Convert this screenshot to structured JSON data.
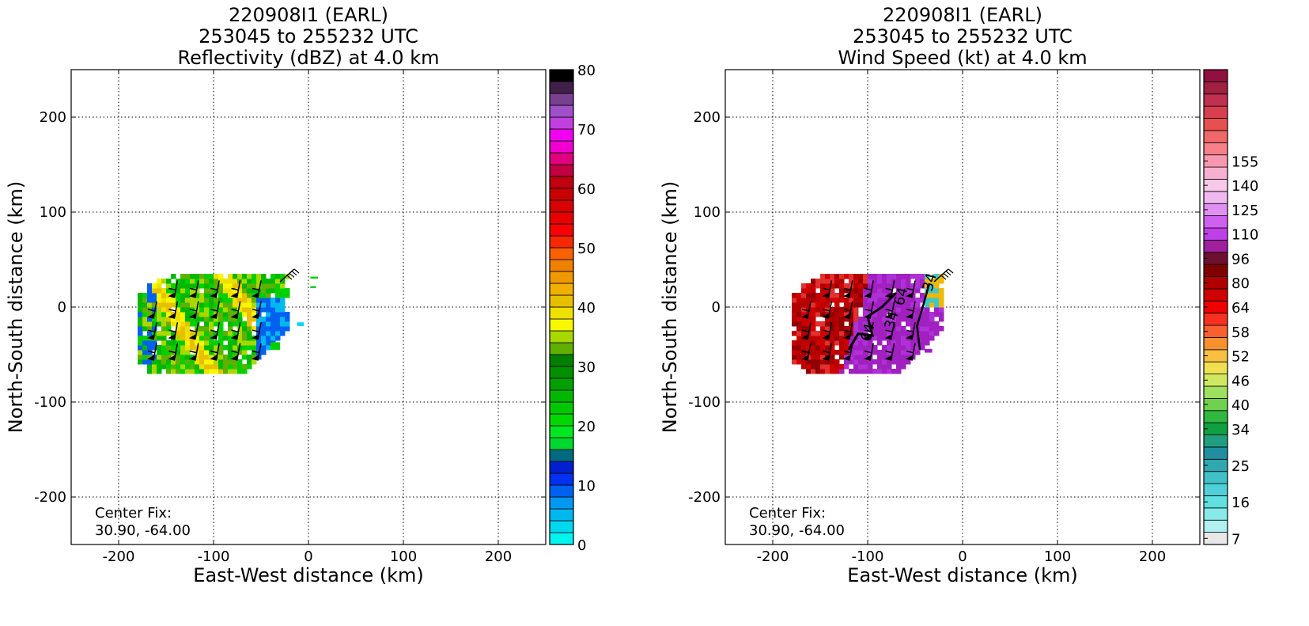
{
  "chart_data": [
    {
      "type": "heatmap",
      "title_lines": [
        "220908I1 (EARL)",
        "253045 to 255232 UTC",
        "Reflectivity (dBZ) at 4.0 km"
      ],
      "xlabel": "East-West distance (km)",
      "ylabel": "North-South distance (km)",
      "xlim": [
        -250,
        250
      ],
      "ylim": [
        -250,
        250
      ],
      "xticks": [
        -200,
        -100,
        0,
        100,
        200
      ],
      "yticks": [
        -200,
        -100,
        0,
        100,
        200
      ],
      "grid": true,
      "annotation_lines": [
        "Center Fix:",
        "30.90, -64.00"
      ],
      "colorbar": {
        "vmin": 0,
        "vmax": 80,
        "tick_values": [
          0,
          10,
          20,
          30,
          40,
          50,
          60,
          70,
          80
        ],
        "tick_labels": [
          "0",
          "10",
          "20",
          "30",
          "40",
          "50",
          "60",
          "70",
          "80"
        ],
        "colors": [
          "#00f5f0",
          "#00d8f0",
          "#00b8f0",
          "#0098f0",
          "#0060f0",
          "#0030f0",
          "#0020d0",
          "#006a80",
          "#00d830",
          "#00e820",
          "#00d800",
          "#00c800",
          "#00b800",
          "#00a000",
          "#009000",
          "#008000",
          "#60b000",
          "#a8d800",
          "#f8f800",
          "#f0e000",
          "#e8c000",
          "#f0b000",
          "#f09800",
          "#f08000",
          "#f86000",
          "#f82800",
          "#f80000",
          "#e80000",
          "#d80000",
          "#c80000",
          "#c00010",
          "#c00040",
          "#e00080",
          "#f000d0",
          "#f000f0",
          "#c040e0",
          "#a050c8",
          "#784090",
          "#402048",
          "#000000"
        ]
      },
      "field_colors": [
        "#00d000",
        "#00b800",
        "#60b000",
        "#a8d800",
        "#f0e000",
        "#e8c000",
        "#f8f800",
        "#00d830",
        "#0060f0",
        "#00b8f0",
        "#00d8f0"
      ]
    },
    {
      "type": "heatmap",
      "title_lines": [
        "220908I1 (EARL)",
        "253045 to 255232 UTC",
        "Wind Speed (kt) at 4.0 km"
      ],
      "xlabel": "East-West distance (km)",
      "ylabel": "North-South distance (km)",
      "xlim": [
        -250,
        250
      ],
      "ylim": [
        -250,
        250
      ],
      "xticks": [
        -200,
        -100,
        0,
        100,
        200
      ],
      "yticks": [
        -200,
        -100,
        0,
        100,
        200
      ],
      "grid": true,
      "annotation_lines": [
        "Center Fix:",
        "30.90, -64.00"
      ],
      "contour_labels": [
        "34",
        "64",
        "64",
        "34"
      ],
      "colorbar": {
        "tick_labels": [
          "7",
          "16",
          "25",
          "34",
          "40",
          "46",
          "52",
          "58",
          "64",
          "80",
          "96",
          "110",
          "125",
          "140",
          "155"
        ],
        "tick_bins": [
          0,
          3,
          6,
          9,
          11,
          13,
          15,
          17,
          19,
          21,
          23,
          25,
          27,
          29,
          31
        ],
        "colors": [
          "#e8e8e8",
          "#b0f0f0",
          "#88eae8",
          "#60e0e0",
          "#50d0d8",
          "#40c0c8",
          "#30a8b0",
          "#2090a0",
          "#20a080",
          "#10a040",
          "#30b840",
          "#70d050",
          "#a0e060",
          "#d0e860",
          "#f0e050",
          "#f8c040",
          "#f89030",
          "#f86030",
          "#f83020",
          "#f00000",
          "#d00000",
          "#b00000",
          "#800000",
          "#701030",
          "#a020a0",
          "#c040e8",
          "#d060f0",
          "#e090f0",
          "#f0b8f0",
          "#f8c8e8",
          "#f8b0d0",
          "#f898b0",
          "#f88088",
          "#f06868",
          "#e85050",
          "#d84050",
          "#c03050",
          "#a02040",
          "#901040"
        ],
        "n_bins": 39
      },
      "field_colors": [
        "#b00000",
        "#c00000",
        "#d00000",
        "#900000",
        "#e03030",
        "#a020c0",
        "#b030d8",
        "#c040e8",
        "#f0b800",
        "#40c8c8"
      ]
    }
  ]
}
